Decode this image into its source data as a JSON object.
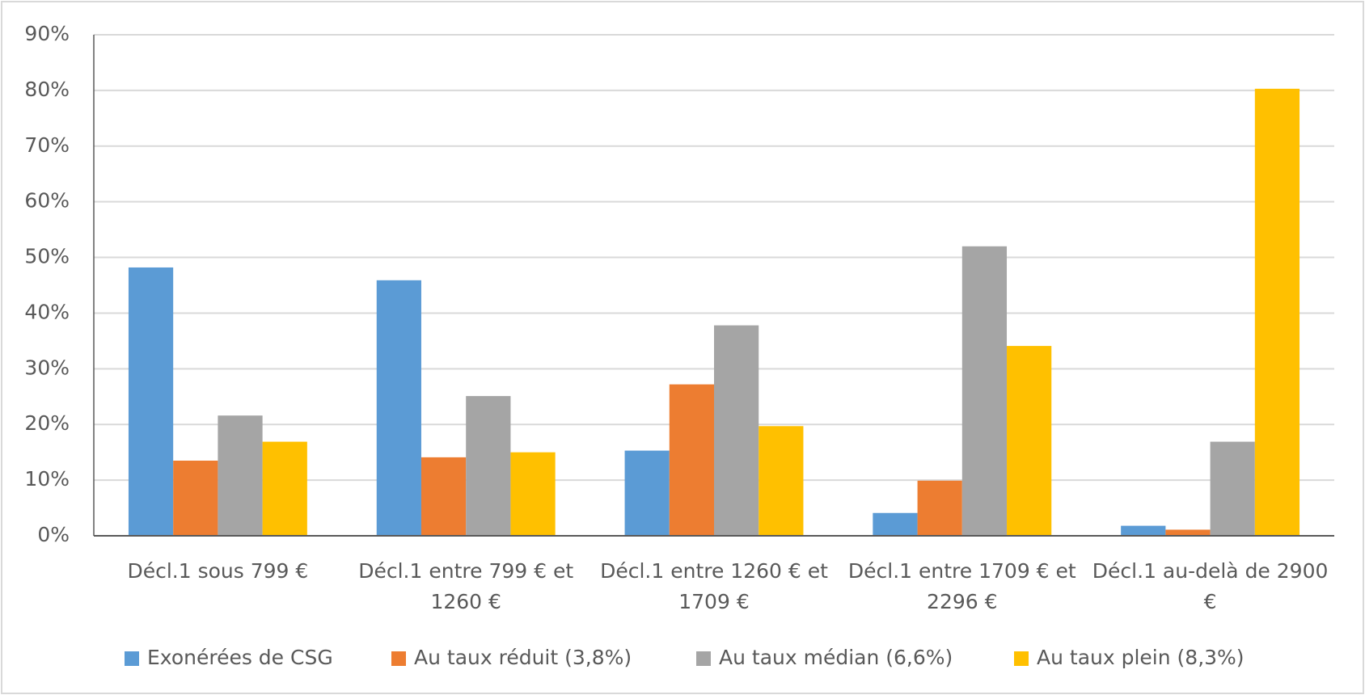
{
  "chart_data": {
    "type": "bar",
    "categories": [
      "Décl.1 sous 799 €",
      "Décl.1 entre 799 € et 1260 €",
      "Décl.1 entre 1260 € et 1709 €",
      "Décl.1 entre 1709 € et 2296 €",
      "Décl.1 au-delà de 2900 €"
    ],
    "series": [
      {
        "name": "Exonérées de CSG",
        "color": "#5b9bd5",
        "values": [
          48.2,
          45.9,
          15.3,
          4.1,
          1.8
        ]
      },
      {
        "name": "Au taux réduit (3,8%)",
        "color": "#ed7d31",
        "values": [
          13.5,
          14.1,
          27.2,
          9.9,
          1.1
        ]
      },
      {
        "name": "Au taux médian (6,6%)",
        "color": "#a5a5a5",
        "values": [
          21.6,
          25.1,
          37.8,
          52.0,
          16.9
        ]
      },
      {
        "name": "Au taux plein (8,3%)",
        "color": "#ffc000",
        "values": [
          16.9,
          15.0,
          19.7,
          34.1,
          80.3
        ]
      }
    ],
    "ylim": [
      0,
      90
    ],
    "yticks": [
      {
        "value": 0,
        "label": "0%"
      },
      {
        "value": 10,
        "label": "10%"
      },
      {
        "value": 20,
        "label": "20%"
      },
      {
        "value": 30,
        "label": "30%"
      },
      {
        "value": 40,
        "label": "40%"
      },
      {
        "value": 50,
        "label": "50%"
      },
      {
        "value": 60,
        "label": "60%"
      },
      {
        "value": 70,
        "label": "70%"
      },
      {
        "value": 80,
        "label": "80%"
      },
      {
        "value": 90,
        "label": "90%"
      }
    ],
    "grid": true,
    "legend": "bottom"
  }
}
